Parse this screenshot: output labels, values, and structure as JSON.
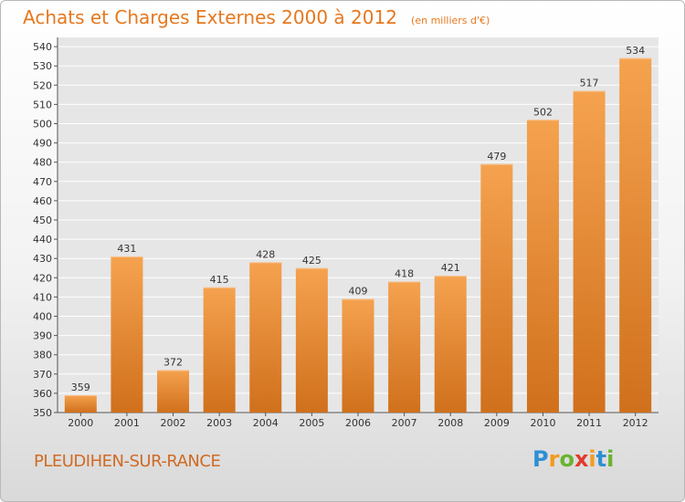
{
  "title": "Achats et Charges Externes 2000 à 2012",
  "unit": "(en milliers d'€)",
  "city": "PLEUDIHEN-SUR-RANCE",
  "logo": {
    "letters": [
      "P",
      "r",
      "o",
      "x",
      "i",
      "t",
      "i"
    ],
    "colors": [
      "#2e8fd4",
      "#f39a1f",
      "#69b42f",
      "#e23b2a",
      "#f39a1f",
      "#2e8fd4",
      "#69b42f"
    ]
  },
  "colors": {
    "bar_top": "#f5a24f",
    "bar_bottom": "#d0701c",
    "title": "#e6781e",
    "grid": "#ffffff",
    "plot_bg": "#e6e6e6"
  },
  "chart_data": {
    "type": "bar",
    "categories": [
      "2000",
      "2001",
      "2002",
      "2003",
      "2004",
      "2005",
      "2006",
      "2007",
      "2008",
      "2009",
      "2010",
      "2011",
      "2012"
    ],
    "values": [
      359,
      431,
      372,
      415,
      428,
      425,
      409,
      418,
      421,
      479,
      502,
      517,
      534
    ],
    "ylim": [
      350,
      540
    ],
    "yticks": [
      350,
      360,
      370,
      380,
      390,
      400,
      410,
      420,
      430,
      440,
      450,
      460,
      470,
      480,
      490,
      500,
      510,
      520,
      530,
      540
    ],
    "grid": true,
    "show_value_labels": true
  }
}
